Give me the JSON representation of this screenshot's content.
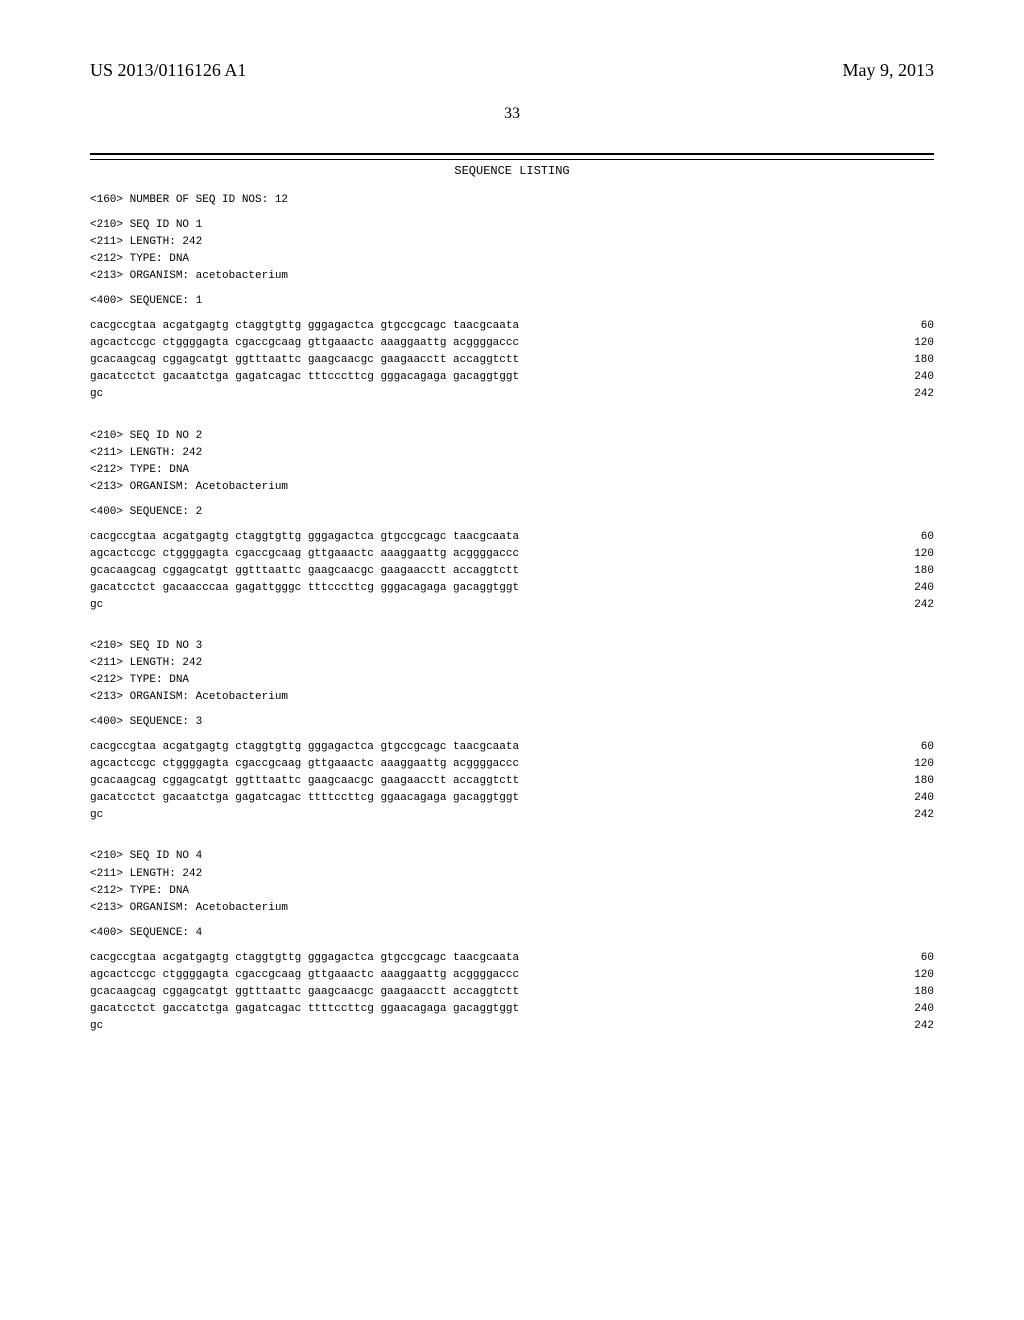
{
  "header": {
    "doc_id": "US 2013/0116126 A1",
    "date": "May 9, 2013"
  },
  "page_number": "33",
  "listing_title": "SEQUENCE LISTING",
  "num_seq_line": "<160> NUMBER OF SEQ ID NOS: 12",
  "sequences": [
    {
      "meta": [
        "<210> SEQ ID NO 1",
        "<211> LENGTH: 242",
        "<212> TYPE: DNA",
        "<213> ORGANISM: acetobacterium"
      ],
      "seq_label": "<400> SEQUENCE: 1",
      "rows": [
        {
          "l": "cacgccgtaa acgatgagtg ctaggtgttg gggagactca gtgccgcagc taacgcaata",
          "r": "60"
        },
        {
          "l": "agcactccgc ctggggagta cgaccgcaag gttgaaactc aaaggaattg acggggaccc",
          "r": "120"
        },
        {
          "l": "gcacaagcag cggagcatgt ggtttaattc gaagcaacgc gaagaacctt accaggtctt",
          "r": "180"
        },
        {
          "l": "gacatcctct gacaatctga gagatcagac tttcccttcg gggacagaga gacaggtggt",
          "r": "240"
        },
        {
          "l": "gc",
          "r": "242"
        }
      ]
    },
    {
      "meta": [
        "<210> SEQ ID NO 2",
        "<211> LENGTH: 242",
        "<212> TYPE: DNA",
        "<213> ORGANISM: Acetobacterium"
      ],
      "seq_label": "<400> SEQUENCE: 2",
      "rows": [
        {
          "l": "cacgccgtaa acgatgagtg ctaggtgttg gggagactca gtgccgcagc taacgcaata",
          "r": "60"
        },
        {
          "l": "agcactccgc ctggggagta cgaccgcaag gttgaaactc aaaggaattg acggggaccc",
          "r": "120"
        },
        {
          "l": "gcacaagcag cggagcatgt ggtttaattc gaagcaacgc gaagaacctt accaggtctt",
          "r": "180"
        },
        {
          "l": "gacatcctct gacaacccaa gagattgggc tttcccttcg gggacagaga gacaggtggt",
          "r": "240"
        },
        {
          "l": "gc",
          "r": "242"
        }
      ]
    },
    {
      "meta": [
        "<210> SEQ ID NO 3",
        "<211> LENGTH: 242",
        "<212> TYPE: DNA",
        "<213> ORGANISM: Acetobacterium"
      ],
      "seq_label": "<400> SEQUENCE: 3",
      "rows": [
        {
          "l": "cacgccgtaa acgatgagtg ctaggtgttg gggagactca gtgccgcagc taacgcaata",
          "r": "60"
        },
        {
          "l": "agcactccgc ctggggagta cgaccgcaag gttgaaactc aaaggaattg acggggaccc",
          "r": "120"
        },
        {
          "l": "gcacaagcag cggagcatgt ggtttaattc gaagcaacgc gaagaacctt accaggtctt",
          "r": "180"
        },
        {
          "l": "gacatcctct gacaatctga gagatcagac ttttccttcg ggaacagaga gacaggtggt",
          "r": "240"
        },
        {
          "l": "gc",
          "r": "242"
        }
      ]
    },
    {
      "meta": [
        "<210> SEQ ID NO 4",
        "<211> LENGTH: 242",
        "<212> TYPE: DNA",
        "<213> ORGANISM: Acetobacterium"
      ],
      "seq_label": "<400> SEQUENCE: 4",
      "rows": [
        {
          "l": "cacgccgtaa acgatgagtg ctaggtgttg gggagactca gtgccgcagc taacgcaata",
          "r": "60"
        },
        {
          "l": "agcactccgc ctggggagta cgaccgcaag gttgaaactc aaaggaattg acggggaccc",
          "r": "120"
        },
        {
          "l": "gcacaagcag cggagcatgt ggtttaattc gaagcaacgc gaagaacctt accaggtctt",
          "r": "180"
        },
        {
          "l": "gacatcctct gaccatctga gagatcagac ttttccttcg ggaacagaga gacaggtggt",
          "r": "240"
        },
        {
          "l": "gc",
          "r": "242"
        }
      ]
    }
  ],
  "colors": {
    "text": "#000000",
    "background": "#ffffff",
    "rule": "#000000"
  },
  "typography": {
    "body_font": "Courier New",
    "body_size_pt": 8,
    "header_font": "Times New Roman",
    "header_size_pt": 13
  }
}
